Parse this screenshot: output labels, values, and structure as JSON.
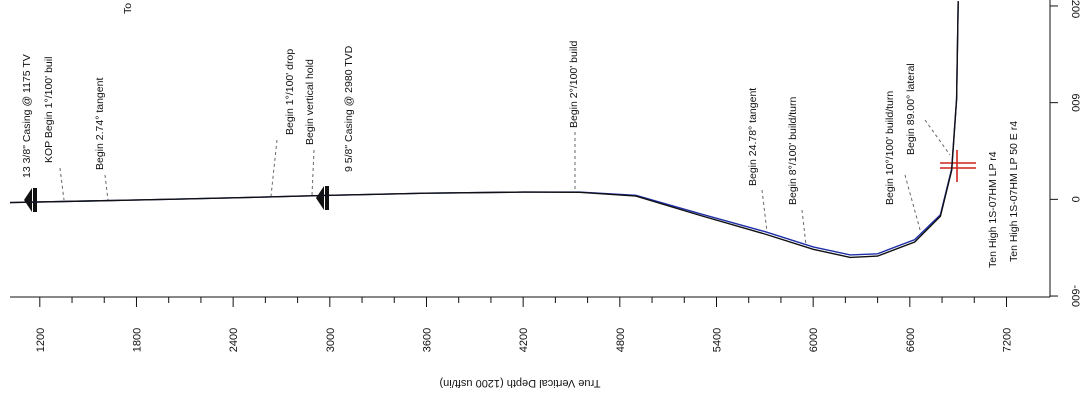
{
  "chart_data": {
    "type": "line",
    "x_label": "True Vertical Depth (1200 usft/in)",
    "x": [
      1015,
      1500,
      2000,
      2500,
      3000,
      3600,
      4200,
      4550,
      4900,
      5300,
      5700,
      6000,
      6230,
      6400,
      6630,
      6790,
      6860,
      6890,
      6900
    ],
    "series": [
      {
        "name": "Ten High 1S-07HM LP r4",
        "color": "#1f2fa8",
        "values": [
          -20,
          -10,
          0,
          12,
          25,
          38,
          45,
          45,
          25,
          -90,
          -200,
          -295,
          -345,
          -338,
          -250,
          -95,
          190,
          625,
          1230
        ]
      },
      {
        "name": "Ten High 1S-07HM LP 50 E  r4",
        "color": "#111111",
        "values": [
          -20,
          -10,
          0,
          12,
          25,
          38,
          45,
          44,
          20,
          -100,
          -215,
          -310,
          -360,
          -352,
          -265,
          -105,
          180,
          620,
          1230
        ]
      }
    ],
    "xlim": [
      1015,
      7470
    ],
    "xticks": [
      1200,
      1800,
      2400,
      3000,
      3600,
      4200,
      4800,
      5400,
      6000,
      6600,
      7200
    ],
    "ylim": [
      -606,
      1237
    ],
    "yticks": [
      -600,
      0,
      600,
      1200
    ],
    "annotations": [
      "13 3/8\" Casing @ 1175 TV",
      "KOP Begin 1°/100' buil",
      "Begin 2.74° tangent",
      "To",
      "Begin 1°/100' drop",
      "Begin vertical hold",
      "9 5/8\" Casing @ 2980 TVD",
      "Begin 2°/100' build",
      "Begin 24.78° tangent",
      "Begin 8°/100' build/turn",
      "Begin 10°/100' build/turn",
      "Begin 89.00° lateral"
    ]
  }
}
